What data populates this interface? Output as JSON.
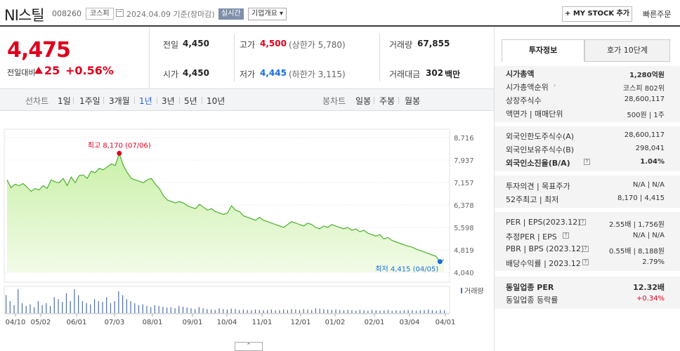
{
  "header": {
    "company_name": "NI스틸",
    "code": "008260",
    "market_badge": "코스피",
    "date_text": "2024.04.09  기준(장마감)",
    "realtime_badge": "실시간",
    "company_summary": "기업개요 ▾",
    "mystock_button": "+ MY STOCK 추가",
    "quick_order": "빠른주문"
  },
  "price": {
    "current": "4,475",
    "change_label": "전일대비",
    "change_value": "25",
    "change_pct": "+0.56%"
  },
  "summary": {
    "prev_label": "전일",
    "prev_value": "4,450",
    "high_label": "고가",
    "high_value": "4,500",
    "upper_limit": "(상한가 5,780)",
    "volume_label": "거래량",
    "volume_value": "67,855",
    "open_label": "시가",
    "open_value": "4,450",
    "low_label": "저가",
    "low_value": "4,445",
    "lower_limit": "(하한가 3,115)",
    "amount_label": "거래대금",
    "amount_value": "302",
    "amount_unit": "백만"
  },
  "range_tabs": {
    "line_label": "선차트",
    "items": [
      "1일",
      "1주일",
      "3개월",
      "1년",
      "3년",
      "5년",
      "10년"
    ],
    "active": "1년",
    "candle_label": "봉차트",
    "candle_items": [
      "일봉",
      "주봉",
      "월봉"
    ]
  },
  "chart_data": {
    "type": "area",
    "y_ticks": [
      "8,716",
      "7,937",
      "7,157",
      "6,378",
      "5,598",
      "4,819",
      "4,040"
    ],
    "ylim": [
      4040,
      8716
    ],
    "x_ticks": [
      "04/10",
      "05/02",
      "06/01",
      "07/03",
      "08/01",
      "09/01",
      "10/04",
      "11/01",
      "12/01",
      "01/02",
      "02/01",
      "03/04",
      "04/01"
    ],
    "values": [
      7250,
      6980,
      7100,
      7050,
      7120,
      7000,
      6850,
      6950,
      6900,
      7050,
      6950,
      7250,
      7180,
      7150,
      7300,
      7050,
      7350,
      7150,
      7400,
      7420,
      7300,
      7550,
      7500,
      7650,
      7600,
      7700,
      7800,
      7750,
      8170,
      7750,
      7500,
      7300,
      7250,
      7200,
      7150,
      7250,
      7300,
      7100,
      6950,
      6700,
      6550,
      6500,
      6450,
      6500,
      6450,
      6350,
      6300,
      6250,
      6400,
      6300,
      6200,
      6250,
      6150,
      6100,
      6050,
      6100,
      6350,
      6200,
      6150,
      6000,
      5950,
      5900,
      5850,
      5950,
      5850,
      5800,
      5750,
      5700,
      5650,
      5600,
      5700,
      5800,
      5750,
      5700,
      5650,
      5750,
      5700,
      5600,
      5550,
      5650,
      5600,
      5700,
      5650,
      5600,
      5550,
      5600,
      5500,
      5550,
      5450,
      5500,
      5400,
      5350,
      5300,
      5350,
      5200,
      5250,
      5150,
      5100,
      5050,
      5000,
      4950,
      4920,
      4850,
      4800,
      4750,
      4700,
      4650,
      4600,
      4415,
      4475
    ],
    "max_label": "최고 8,170 (07/06)",
    "min_label": "최저 4,415 (04/05)",
    "volume_label": "거래량",
    "volume": [
      45,
      30,
      20,
      60,
      25,
      18,
      22,
      15,
      30,
      20,
      25,
      18,
      40,
      35,
      28,
      50,
      30,
      60,
      45,
      30,
      25,
      22,
      35,
      30,
      28,
      40,
      25,
      30,
      55,
      45,
      35,
      30,
      25,
      20,
      22,
      18,
      15,
      20,
      18,
      16,
      14,
      15,
      12,
      18,
      16,
      14,
      12,
      10,
      15,
      12,
      10,
      9,
      8,
      12,
      10,
      9,
      11,
      10,
      8,
      9,
      8,
      7,
      9,
      8,
      7,
      8,
      9,
      7,
      8,
      9,
      8,
      10,
      9,
      8,
      10,
      9,
      8,
      12,
      11,
      10,
      9,
      8,
      9,
      8,
      7,
      8,
      7,
      6,
      8,
      7,
      6,
      8,
      7,
      6,
      7,
      8,
      6,
      7,
      6,
      7,
      8,
      7,
      6,
      7,
      8,
      9,
      7,
      6,
      8,
      7
    ],
    "colors": {
      "line": "#4caf30",
      "fill_top": "#c9f0a8",
      "fill_bottom": "#f2fbe8",
      "max": "#e0001e",
      "min": "#1a6ee0",
      "volume": "#4d6fa8"
    }
  },
  "right_panel": {
    "tab_info": "투자정보",
    "tab_quote": "호가 10단계",
    "market_cap_label": "시가총액",
    "market_cap_value": "1,280억원",
    "cap_rank_label": "시가총액순위",
    "cap_rank_value": "코스피 802위",
    "shares_label": "상장주식수",
    "shares_value": "28,600,117",
    "face_label": "액면가 | 매매단위",
    "face_value": "500원 | 1주",
    "foreign_limit_label": "외국인한도주식수(A)",
    "foreign_limit_value": "28,600,117",
    "foreign_hold_label": "외국인보유주식수(B)",
    "foreign_hold_value": "298,041",
    "foreign_ratio_label": "외국인소진율(B/A)",
    "foreign_ratio_value": "1.04%",
    "opinion_label": "투자의견 | 목표주가",
    "opinion_value": "N/A | N/A",
    "week52_label": "52주최고 | 최저",
    "week52_value": "8,170 | 4,415",
    "per_label": "PER | EPS(2023.12)",
    "per_value": "2.55배 | 1,756원",
    "est_per_label": "추정PER | EPS",
    "est_per_value": "N/A | N/A",
    "pbr_label": "PBR | BPS (2023.12)",
    "pbr_value": "0.55배 | 8,188원",
    "div_label": "배당수익률 | 2023.12",
    "div_value": "2.79%",
    "industry_per_label": "동일업종 PER",
    "industry_per_value": "12.32배",
    "industry_chg_label": "동일업종 등락률",
    "industry_chg_value": "+0.34%"
  }
}
